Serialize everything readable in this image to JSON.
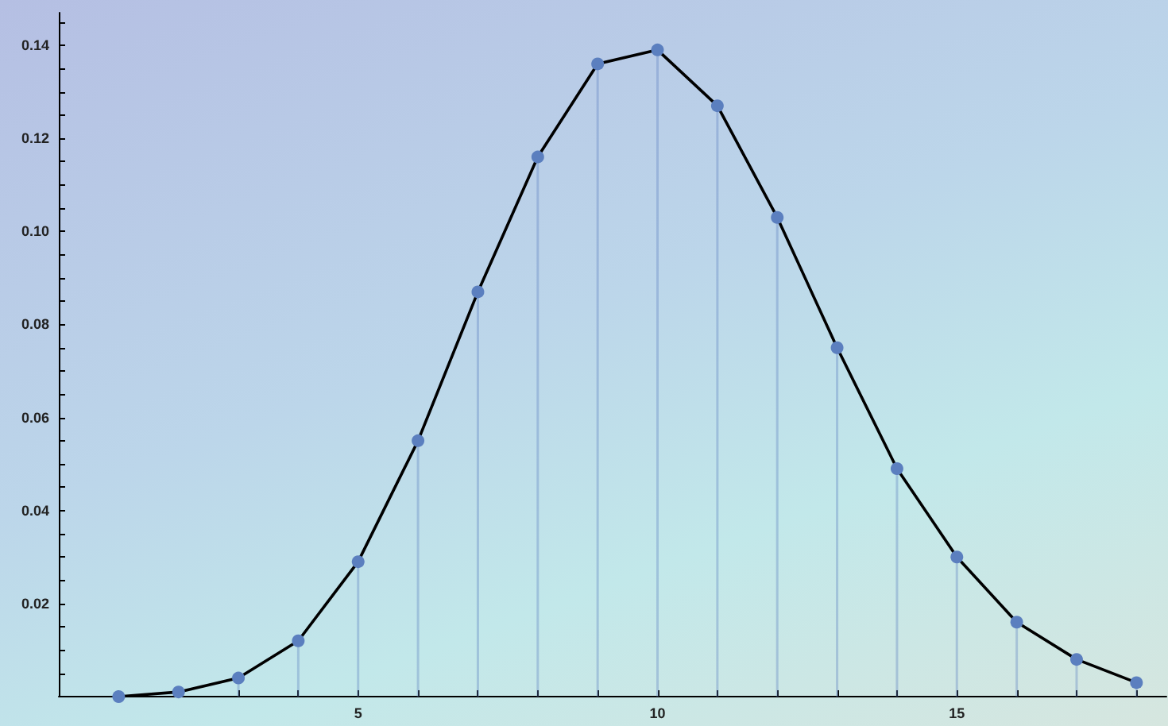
{
  "chart_data": {
    "type": "lollipop",
    "x": [
      1,
      2,
      3,
      4,
      5,
      6,
      7,
      8,
      9,
      10,
      11,
      12,
      13,
      14,
      15,
      16,
      17,
      18
    ],
    "series": [
      {
        "type": "line",
        "marker": "none",
        "color": "#000000",
        "values": [
          0.0,
          0.001,
          0.004,
          0.012,
          0.029,
          0.055,
          0.087,
          0.116,
          0.136,
          0.139,
          0.127,
          0.103,
          0.075,
          0.049,
          0.03,
          0.016,
          0.008,
          0.003
        ]
      },
      {
        "marker": "circle",
        "color": "#5b7fbf",
        "values": [
          0.0,
          0.001,
          0.004,
          0.012,
          0.029,
          0.055,
          0.087,
          0.116,
          0.136,
          0.139,
          0.127,
          0.103,
          0.075,
          0.049,
          0.03,
          0.016,
          0.008,
          0.003
        ]
      }
    ],
    "line_style": "solid",
    "grid": false,
    "xlim": [
      0,
      18.5
    ],
    "xticks": [
      {
        "value": 1,
        "label": null
      },
      {
        "value": 2,
        "label": null
      },
      {
        "value": 3,
        "label": null
      },
      {
        "value": 4,
        "label": null
      },
      5,
      {
        "value": 6,
        "label": null
      },
      {
        "value": 7,
        "label": null
      },
      {
        "value": 8,
        "label": null
      },
      {
        "value": 9,
        "label": null
      },
      10,
      {
        "value": 11,
        "label": null
      },
      {
        "value": 12,
        "label": null
      },
      {
        "value": 13,
        "label": null
      },
      {
        "value": 14,
        "label": null
      },
      15,
      {
        "value": 16,
        "label": null
      },
      {
        "value": 17,
        "label": null
      },
      {
        "value": 18,
        "label": null
      }
    ],
    "ylim": [
      0,
      0.147
    ],
    "yticks": [
      {
        "value": 0.005,
        "label": null
      },
      {
        "value": 0.01,
        "label": null
      },
      {
        "value": 0.015,
        "label": null
      },
      0.02,
      {
        "value": 0.025,
        "label": null
      },
      {
        "value": 0.03,
        "label": null
      },
      {
        "value": 0.035,
        "label": null
      },
      0.04,
      {
        "value": 0.045,
        "label": null
      },
      {
        "value": 0.05,
        "label": null
      },
      {
        "value": 0.055,
        "label": null
      },
      0.06,
      {
        "value": 0.065,
        "label": null
      },
      {
        "value": 0.07,
        "label": null
      },
      {
        "value": 0.075,
        "label": null
      },
      0.08,
      {
        "value": 0.085,
        "label": null
      },
      {
        "value": 0.09,
        "label": null
      },
      {
        "value": 0.095,
        "label": null
      },
      {
        "value": 0.1,
        "label": "0.10"
      },
      {
        "value": 0.105,
        "label": null
      },
      {
        "value": 0.11,
        "label": null
      },
      {
        "value": 0.115,
        "label": null
      },
      0.12,
      {
        "value": 0.125,
        "label": null
      },
      {
        "value": 0.13,
        "label": null
      },
      {
        "value": 0.135,
        "label": null
      },
      0.14,
      {
        "value": 0.145,
        "label": null
      }
    ]
  }
}
